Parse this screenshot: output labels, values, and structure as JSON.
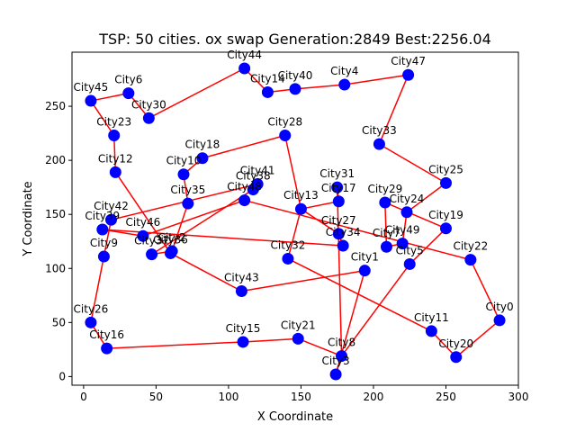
{
  "chart_data": {
    "type": "line+scatter",
    "title": "TSP: 50 cities. ox swap Generation:2849 Best:2256.04",
    "xlabel": "X Coordinate",
    "ylabel": "Y Coordinate",
    "xlim": [
      -8,
      300
    ],
    "ylim": [
      -8,
      300
    ],
    "x_ticks": [
      0,
      50,
      100,
      150,
      200,
      250,
      300
    ],
    "y_ticks": [
      0,
      50,
      100,
      150,
      200,
      250
    ],
    "grid": false,
    "route_color": "#ff0000",
    "city_color": "#0000ff",
    "cities": [
      {
        "name": "City0",
        "x": 287,
        "y": 52
      },
      {
        "name": "City1",
        "x": 194,
        "y": 98
      },
      {
        "name": "City2",
        "x": 61,
        "y": 116
      },
      {
        "name": "City3",
        "x": 174,
        "y": 2
      },
      {
        "name": "City4",
        "x": 180,
        "y": 270
      },
      {
        "name": "City5",
        "x": 225,
        "y": 104
      },
      {
        "name": "City6",
        "x": 31,
        "y": 262
      },
      {
        "name": "City7",
        "x": 209,
        "y": 120
      },
      {
        "name": "City8",
        "x": 178,
        "y": 19
      },
      {
        "name": "City9",
        "x": 14,
        "y": 111
      },
      {
        "name": "City10",
        "x": 69,
        "y": 187
      },
      {
        "name": "City11",
        "x": 240,
        "y": 42
      },
      {
        "name": "City12",
        "x": 22,
        "y": 189
      },
      {
        "name": "City13",
        "x": 150,
        "y": 155
      },
      {
        "name": "City14",
        "x": 127,
        "y": 263
      },
      {
        "name": "City15",
        "x": 110,
        "y": 32
      },
      {
        "name": "City16",
        "x": 16,
        "y": 26
      },
      {
        "name": "City17",
        "x": 176,
        "y": 162
      },
      {
        "name": "City18",
        "x": 82,
        "y": 202
      },
      {
        "name": "City19",
        "x": 250,
        "y": 137
      },
      {
        "name": "City20",
        "x": 257,
        "y": 18
      },
      {
        "name": "City21",
        "x": 148,
        "y": 35
      },
      {
        "name": "City22",
        "x": 267,
        "y": 108
      },
      {
        "name": "City23",
        "x": 21,
        "y": 223
      },
      {
        "name": "City24",
        "x": 223,
        "y": 152
      },
      {
        "name": "City25",
        "x": 250,
        "y": 179
      },
      {
        "name": "City26",
        "x": 5,
        "y": 50
      },
      {
        "name": "City27",
        "x": 176,
        "y": 132
      },
      {
        "name": "City28",
        "x": 139,
        "y": 223
      },
      {
        "name": "City29",
        "x": 208,
        "y": 161
      },
      {
        "name": "City30",
        "x": 45,
        "y": 239
      },
      {
        "name": "City31",
        "x": 175,
        "y": 175
      },
      {
        "name": "City32",
        "x": 141,
        "y": 109
      },
      {
        "name": "City33",
        "x": 204,
        "y": 215
      },
      {
        "name": "City34",
        "x": 179,
        "y": 121
      },
      {
        "name": "City35",
        "x": 72,
        "y": 160
      },
      {
        "name": "City36",
        "x": 60,
        "y": 114
      },
      {
        "name": "City37",
        "x": 47,
        "y": 113
      },
      {
        "name": "City38",
        "x": 117,
        "y": 173
      },
      {
        "name": "City39",
        "x": 13,
        "y": 136
      },
      {
        "name": "City40",
        "x": 146,
        "y": 266
      },
      {
        "name": "City41",
        "x": 120,
        "y": 178
      },
      {
        "name": "City42",
        "x": 19,
        "y": 145
      },
      {
        "name": "City43",
        "x": 109,
        "y": 79
      },
      {
        "name": "City44",
        "x": 111,
        "y": 285
      },
      {
        "name": "City45",
        "x": 5,
        "y": 255
      },
      {
        "name": "City46",
        "x": 41,
        "y": 130
      },
      {
        "name": "City47",
        "x": 224,
        "y": 279
      },
      {
        "name": "City48",
        "x": 111,
        "y": 163
      },
      {
        "name": "City49",
        "x": 220,
        "y": 123
      }
    ],
    "tour": [
      "City0",
      "City20",
      "City11",
      "City32",
      "City13",
      "City28",
      "City18",
      "City10",
      "City35",
      "City2",
      "City37",
      "City38",
      "City41",
      "City42",
      "City9",
      "City26",
      "City16",
      "City15",
      "City21",
      "City8",
      "City5",
      "City19",
      "City29",
      "City7",
      "City49",
      "City24",
      "City25",
      "City33",
      "City47",
      "City4",
      "City40",
      "City14",
      "City44",
      "City30",
      "City6",
      "City45",
      "City23",
      "City12",
      "City36",
      "City43",
      "City1",
      "City3",
      "City8",
      "City31",
      "City17",
      "City13",
      "City27",
      "City34",
      "City39",
      "City46",
      "City48",
      "City22",
      "City0"
    ]
  }
}
